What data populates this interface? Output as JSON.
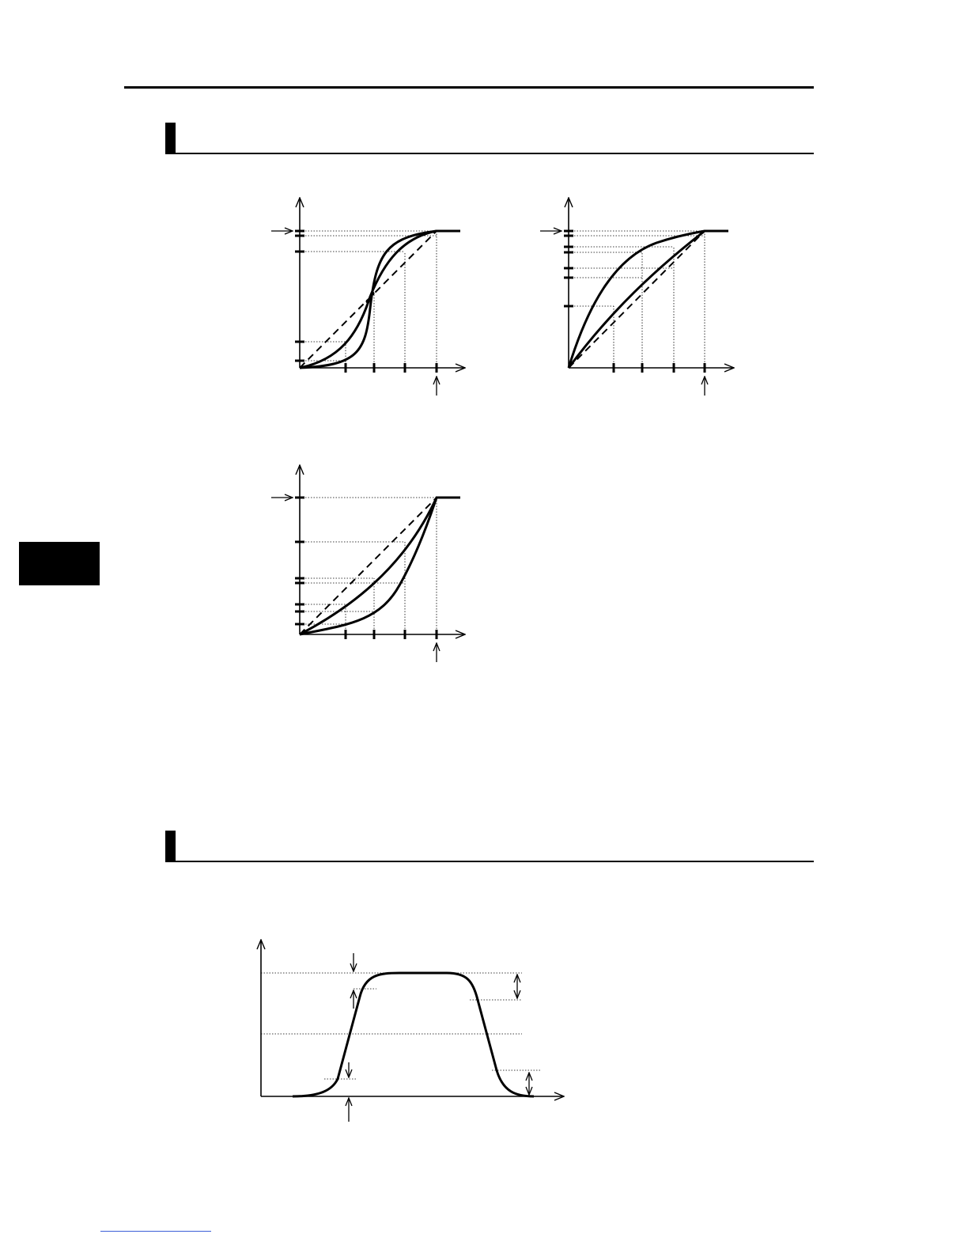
{
  "page": {
    "sections": [
      {
        "id": "curve-characteristics"
      },
      {
        "id": "acceleration-profile"
      }
    ]
  },
  "diagrams": [
    {
      "id": "s-curve-chart",
      "curves": [
        "steep-s",
        "gentle-s"
      ],
      "reference": "linear-dashed"
    },
    {
      "id": "concave-down-chart",
      "curves": [
        "strong-arc",
        "weak-arc"
      ],
      "reference": "linear-dashed"
    },
    {
      "id": "concave-up-chart",
      "curves": [
        "weak-arc",
        "strong-arc"
      ],
      "reference": "linear-dashed"
    },
    {
      "id": "trapezoid-profile-chart",
      "curves": [
        "rise-plateau-fall"
      ]
    }
  ],
  "colors": {
    "ink": "#000000",
    "paper": "#ffffff",
    "link": "#3b5fd8"
  },
  "icons": [
    "right-arrow-icon",
    "up-arrow-icon",
    "down-arrow-icon",
    "double-arrow-icon"
  ]
}
